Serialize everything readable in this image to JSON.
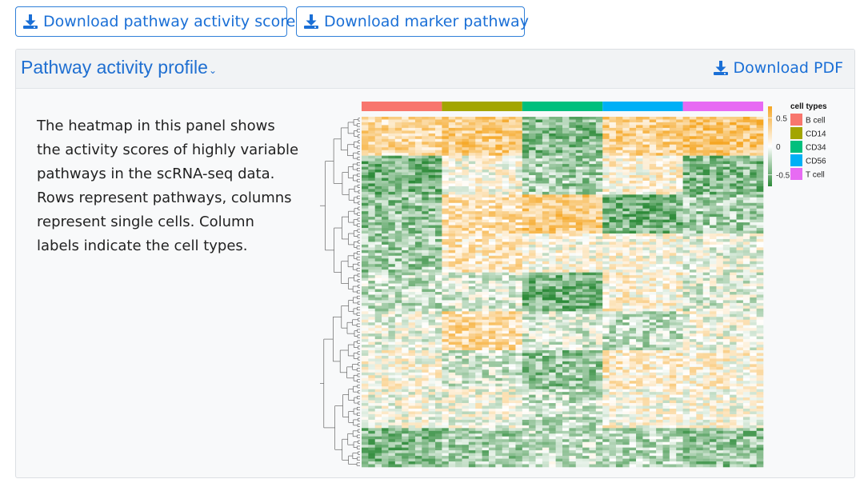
{
  "toolbar": {
    "download_score_label": "Download pathway activity score",
    "download_marker_label": "Download marker pathway"
  },
  "panel": {
    "title": "Pathway activity profile",
    "download_pdf_label": "Download PDF",
    "description": "The heatmap in this panel shows the activity scores of highly variable pathways in the scRNA-seq data. Rows represent pathways, columns represent single cells. Column labels indicate the cell types."
  },
  "colors": {
    "accent": "#1a6fd6",
    "high": "#f5a623",
    "mid": "#ffffff",
    "low": "#2e8b3a"
  },
  "chart_data": {
    "type": "heatmap",
    "color_scale": {
      "ticks": [
        0.5,
        0,
        -0.5
      ],
      "range": [
        -0.7,
        0.7
      ]
    },
    "legend_title": "cell types",
    "cell_types": [
      {
        "name": "B cell",
        "color": "#f8766d"
      },
      {
        "name": "CD14",
        "color": "#a3a500"
      },
      {
        "name": "CD34",
        "color": "#00bf7d"
      },
      {
        "name": "CD56",
        "color": "#00b0f6"
      },
      {
        "name": "T cell",
        "color": "#e76bf3"
      }
    ],
    "block_pattern": [
      [
        0.3,
        0.4,
        -0.4,
        0.35,
        0.45
      ],
      [
        -0.45,
        0.05,
        -0.3,
        0.1,
        -0.4
      ],
      [
        -0.35,
        0.25,
        0.4,
        -0.45,
        -0.3
      ],
      [
        -0.3,
        0.2,
        0.05,
        0.05,
        -0.05
      ],
      [
        -0.2,
        -0.1,
        -0.45,
        0.1,
        -0.1
      ],
      [
        -0.05,
        0.3,
        -0.1,
        -0.2,
        0.0
      ],
      [
        0.05,
        -0.15,
        -0.35,
        0.15,
        0.1
      ],
      [
        0.0,
        0.0,
        -0.2,
        0.05,
        0.05
      ],
      [
        -0.4,
        -0.3,
        -0.2,
        -0.25,
        -0.35
      ]
    ]
  }
}
